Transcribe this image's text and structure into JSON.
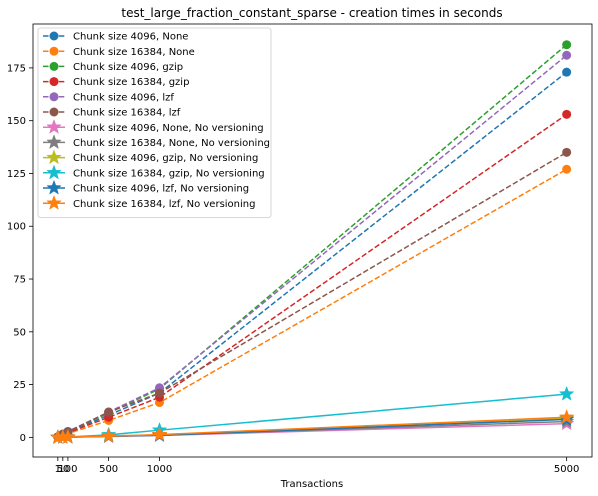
{
  "chart_data": {
    "type": "line",
    "title": "test_large_fraction_constant_sparse - creation times in seconds",
    "xlabel": "Transactions",
    "ylabel": "",
    "x": [
      1,
      50,
      100,
      500,
      1000,
      5000
    ],
    "xticks": [
      1,
      50,
      100,
      500,
      1000,
      5000
    ],
    "xtick_labels": [
      "1",
      "50",
      "100",
      "500",
      "1000",
      "5000"
    ],
    "yticks": [
      0,
      25,
      50,
      75,
      100,
      125,
      150,
      175
    ],
    "ytick_labels": [
      "0",
      "25",
      "50",
      "75",
      "100",
      "125",
      "150",
      "175"
    ],
    "xlim": [
      -243,
      5249
    ],
    "ylim": [
      -9.3,
      195.8
    ],
    "grid": false,
    "legend_position": "top-left",
    "series": [
      {
        "name": "Chunk size 4096, None",
        "color": "#1f77b4",
        "marker": "circle",
        "linestyle": "dashed",
        "values": [
          0.2,
          1.5,
          2.5,
          10.5,
          21,
          173
        ]
      },
      {
        "name": "Chunk size 16384, None",
        "color": "#ff7f0e",
        "marker": "circle",
        "linestyle": "dashed",
        "values": [
          0.2,
          1.0,
          1.8,
          8,
          16.5,
          127
        ]
      },
      {
        "name": "Chunk size 4096, gzip",
        "color": "#2ca02c",
        "marker": "circle",
        "linestyle": "dashed",
        "values": [
          0.2,
          1.5,
          2.8,
          11.5,
          23,
          186
        ]
      },
      {
        "name": "Chunk size 16384, gzip",
        "color": "#d62728",
        "marker": "circle",
        "linestyle": "dashed",
        "values": [
          0.2,
          1.2,
          2.2,
          9.5,
          19,
          153
        ]
      },
      {
        "name": "Chunk size 4096, lzf",
        "color": "#9467bd",
        "marker": "circle",
        "linestyle": "dashed",
        "values": [
          0.2,
          1.6,
          2.8,
          12,
          23.5,
          181
        ]
      },
      {
        "name": "Chunk size 16384, lzf",
        "color": "#8c564b",
        "marker": "circle",
        "linestyle": "dashed",
        "values": [
          0.2,
          1.5,
          2.6,
          12,
          21,
          135
        ]
      },
      {
        "name": "Chunk size 4096, None, No versioning",
        "color": "#e377c2",
        "marker": "star",
        "linestyle": "solid",
        "values": [
          0.0,
          0.05,
          0.1,
          0.4,
          0.9,
          6.5
        ]
      },
      {
        "name": "Chunk size 16384, None, No versioning",
        "color": "#7f7f7f",
        "marker": "star",
        "linestyle": "solid",
        "values": [
          0.0,
          0.05,
          0.1,
          0.5,
          1.0,
          7.5
        ]
      },
      {
        "name": "Chunk size 4096, gzip, No versioning",
        "color": "#bcbd22",
        "marker": "star",
        "linestyle": "solid",
        "values": [
          0.0,
          0.05,
          0.15,
          0.6,
          1.2,
          9.0
        ]
      },
      {
        "name": "Chunk size 16384, gzip, No versioning",
        "color": "#17becf",
        "marker": "star",
        "linestyle": "solid",
        "values": [
          0.0,
          0.1,
          0.2,
          1.2,
          3.4,
          20.5
        ]
      },
      {
        "name": "Chunk size 4096, lzf, No versioning",
        "color": "#1f77b4",
        "marker": "star",
        "linestyle": "solid",
        "values": [
          0.0,
          0.05,
          0.1,
          0.5,
          1.0,
          8.5
        ]
      },
      {
        "name": "Chunk size 16384, lzf, No versioning",
        "color": "#ff7f0e",
        "marker": "star",
        "linestyle": "solid",
        "values": [
          0.0,
          0.05,
          0.15,
          0.6,
          1.3,
          9.5
        ]
      }
    ]
  }
}
